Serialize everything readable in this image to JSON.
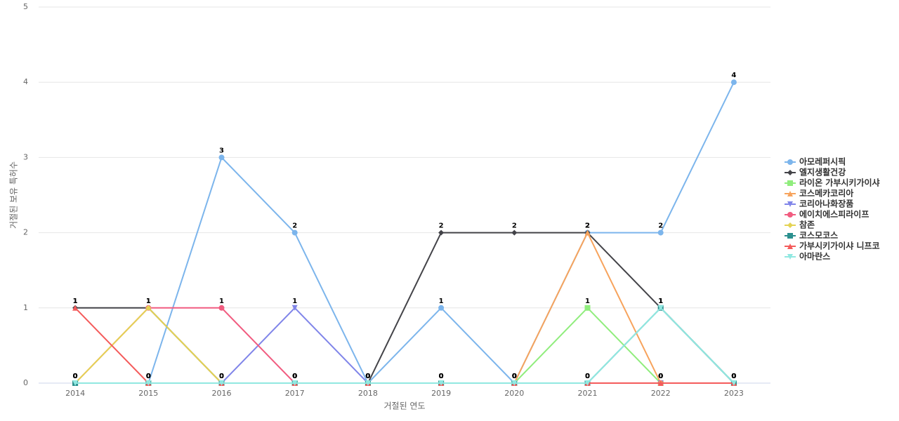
{
  "chart_data": {
    "type": "line",
    "x_label": "거절된 연도",
    "y_label": "거절된 보유 특허수",
    "categories": [
      "2014",
      "2015",
      "2016",
      "2017",
      "2018",
      "2019",
      "2020",
      "2021",
      "2022",
      "2023"
    ],
    "ylim": [
      0,
      5
    ],
    "yticks": [
      0,
      1,
      2,
      3,
      4,
      5
    ],
    "grid": true,
    "legend": "right",
    "series": [
      {
        "name": "아모레퍼시픽",
        "color": "#7cb5ec",
        "marker": "circle",
        "values": [
          0,
          0,
          3,
          2,
          0,
          1,
          0,
          2,
          2,
          4
        ]
      },
      {
        "name": "엘지생활건강",
        "color": "#434348",
        "marker": "diamond",
        "values": [
          1,
          1,
          0,
          0,
          0,
          2,
          2,
          2,
          1,
          0
        ]
      },
      {
        "name": "라이온 가부시키가이샤",
        "color": "#90ed7d",
        "marker": "square",
        "values": [
          0,
          0,
          0,
          0,
          0,
          0,
          0,
          1,
          0,
          0
        ]
      },
      {
        "name": "코스메카코리아",
        "color": "#f7a35c",
        "marker": "triangle",
        "values": [
          0,
          0,
          0,
          0,
          0,
          0,
          0,
          2,
          0,
          0
        ]
      },
      {
        "name": "코리아나화장품",
        "color": "#8085e9",
        "marker": "triangle-down",
        "values": [
          0,
          0,
          0,
          1,
          0,
          0,
          0,
          0,
          0,
          0
        ]
      },
      {
        "name": "에이치에스피라이프",
        "color": "#f15c80",
        "marker": "circle",
        "values": [
          0,
          1,
          1,
          0,
          0,
          0,
          0,
          0,
          0,
          0
        ]
      },
      {
        "name": "참존",
        "color": "#e4d354",
        "marker": "diamond",
        "values": [
          0,
          1,
          0,
          0,
          0,
          0,
          0,
          0,
          0,
          0
        ]
      },
      {
        "name": "코스모코스",
        "color": "#2b908f",
        "marker": "square",
        "values": [
          0,
          0,
          0,
          0,
          0,
          0,
          0,
          0,
          1,
          0
        ]
      },
      {
        "name": "가부시키가이샤 니프코",
        "color": "#f45b5b",
        "marker": "triangle",
        "values": [
          1,
          0,
          0,
          0,
          0,
          0,
          0,
          0,
          0,
          0
        ]
      },
      {
        "name": "아마란스",
        "color": "#91e8e1",
        "marker": "triangle-down",
        "values": [
          0,
          0,
          0,
          0,
          0,
          0,
          0,
          0,
          1,
          0
        ]
      }
    ]
  }
}
